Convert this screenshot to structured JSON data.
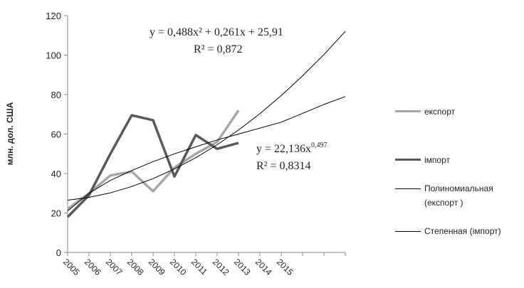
{
  "chart_data": {
    "type": "line",
    "y_label": "млн. дол. США",
    "categories": [
      "2005",
      "2006",
      "2007",
      "2008",
      "2009",
      "2010",
      "2011",
      "2012",
      "2013",
      "2014",
      "2015",
      null,
      null,
      null
    ],
    "series": [
      {
        "name": "експорт",
        "color": "#a6a6a6",
        "line_width": 3.5,
        "values": [
          22,
          30,
          39,
          41,
          31,
          43,
          50,
          56,
          72,
          null,
          null,
          null,
          null,
          null
        ]
      },
      {
        "name": "імпорт",
        "color": "#595959",
        "line_width": 3.5,
        "values": [
          18,
          29,
          50,
          69.5,
          67,
          38.5,
          59.5,
          52.5,
          55.5,
          null,
          null,
          null,
          null,
          null
        ]
      },
      {
        "name": "Полиномиальная (експорт )",
        "color": "#000000",
        "line_width": 1,
        "values": [
          26.5,
          27.9,
          30.2,
          33.4,
          37.4,
          42.3,
          48,
          54.6,
          62,
          70.3,
          79.5,
          89.5,
          100.3,
          112
        ]
      },
      {
        "name": "Степенная (імпорт)",
        "color": "#000000",
        "line_width": 1,
        "values": [
          21,
          30,
          36.5,
          41.5,
          46,
          50,
          53.5,
          57,
          60,
          63,
          66,
          70.5,
          75,
          79
        ]
      }
    ],
    "annotations": [
      {
        "text": "y = 0,488x² + 0,261x + 25,91"
      },
      {
        "text": "R² = 0,872"
      },
      {
        "text": "y = 22,136x",
        "sup": "0,497"
      },
      {
        "text": "R² = 0,8314"
      }
    ],
    "ylim": [
      0,
      120
    ],
    "yticks": [
      0,
      20,
      40,
      60,
      80,
      100,
      120
    ],
    "grid": false,
    "legend": "right"
  }
}
